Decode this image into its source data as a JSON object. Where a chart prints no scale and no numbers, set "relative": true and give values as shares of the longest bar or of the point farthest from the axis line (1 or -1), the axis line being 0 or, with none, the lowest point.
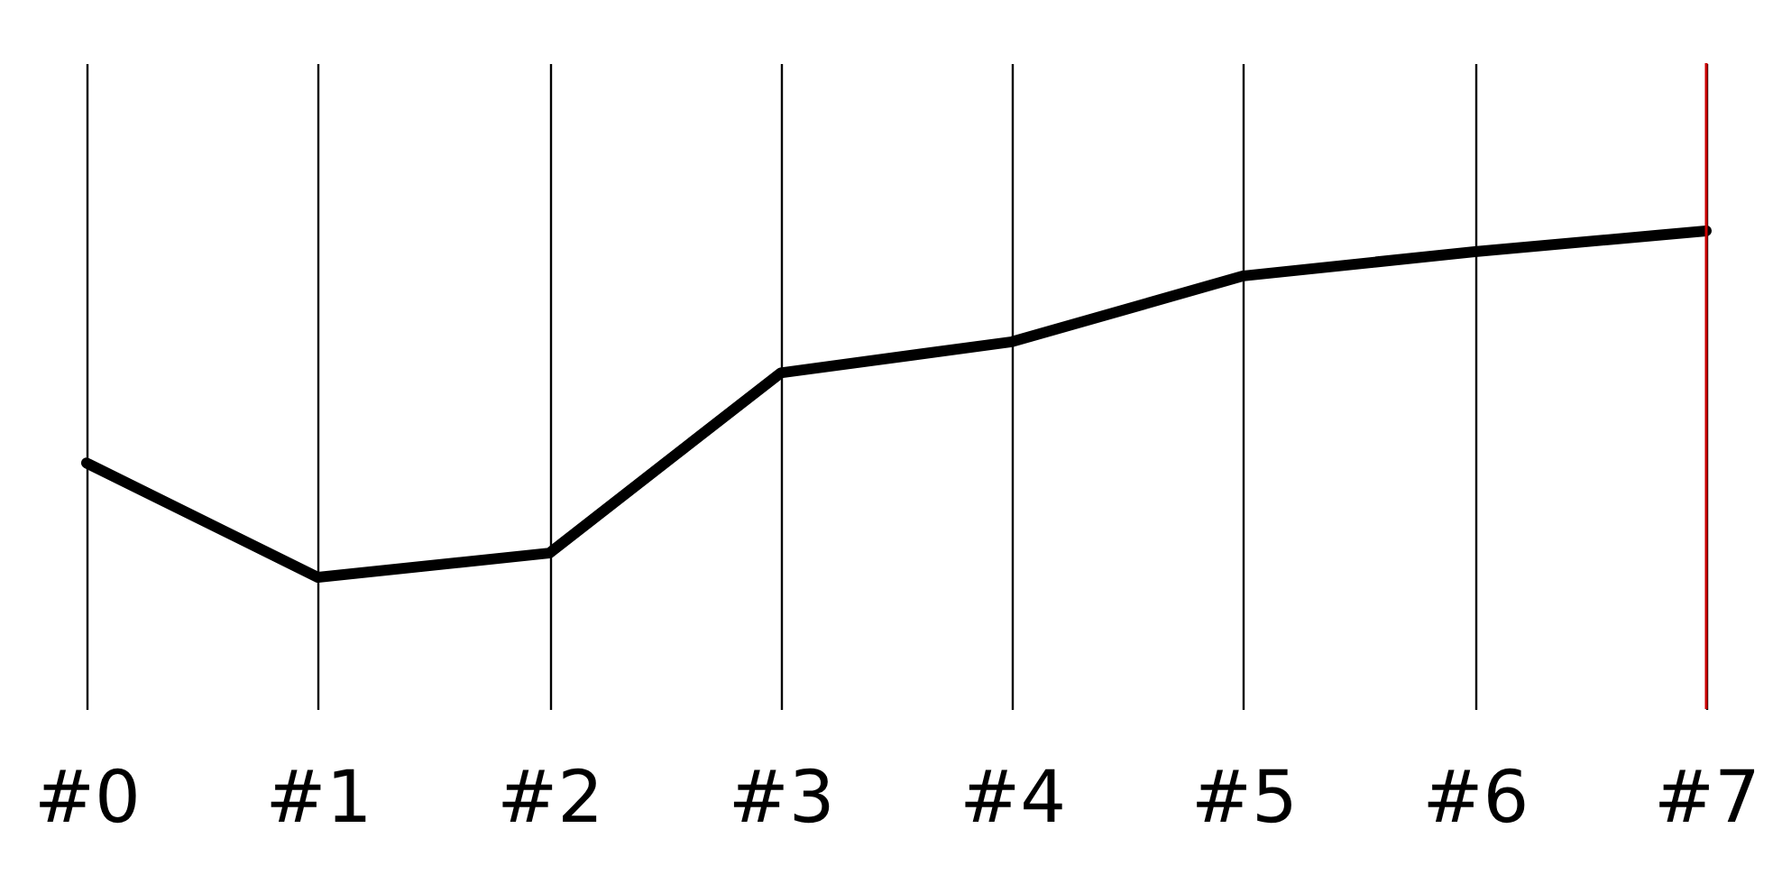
{
  "chart_data": {
    "type": "line",
    "relative": true,
    "categories": [
      "#0",
      "#1",
      "#2",
      "#3",
      "#4",
      "#5",
      "#6",
      "#7"
    ],
    "series": [
      {
        "color": "#000000",
        "values": [
          0.33,
          0,
          0.07,
          0.59,
          0.68,
          0.87,
          0.94,
          1
        ]
      }
    ],
    "grid": "x",
    "line_style": "solid",
    "ref_lines": [
      {
        "axis": "x",
        "value": "#7",
        "color": "#cc0000"
      }
    ]
  }
}
